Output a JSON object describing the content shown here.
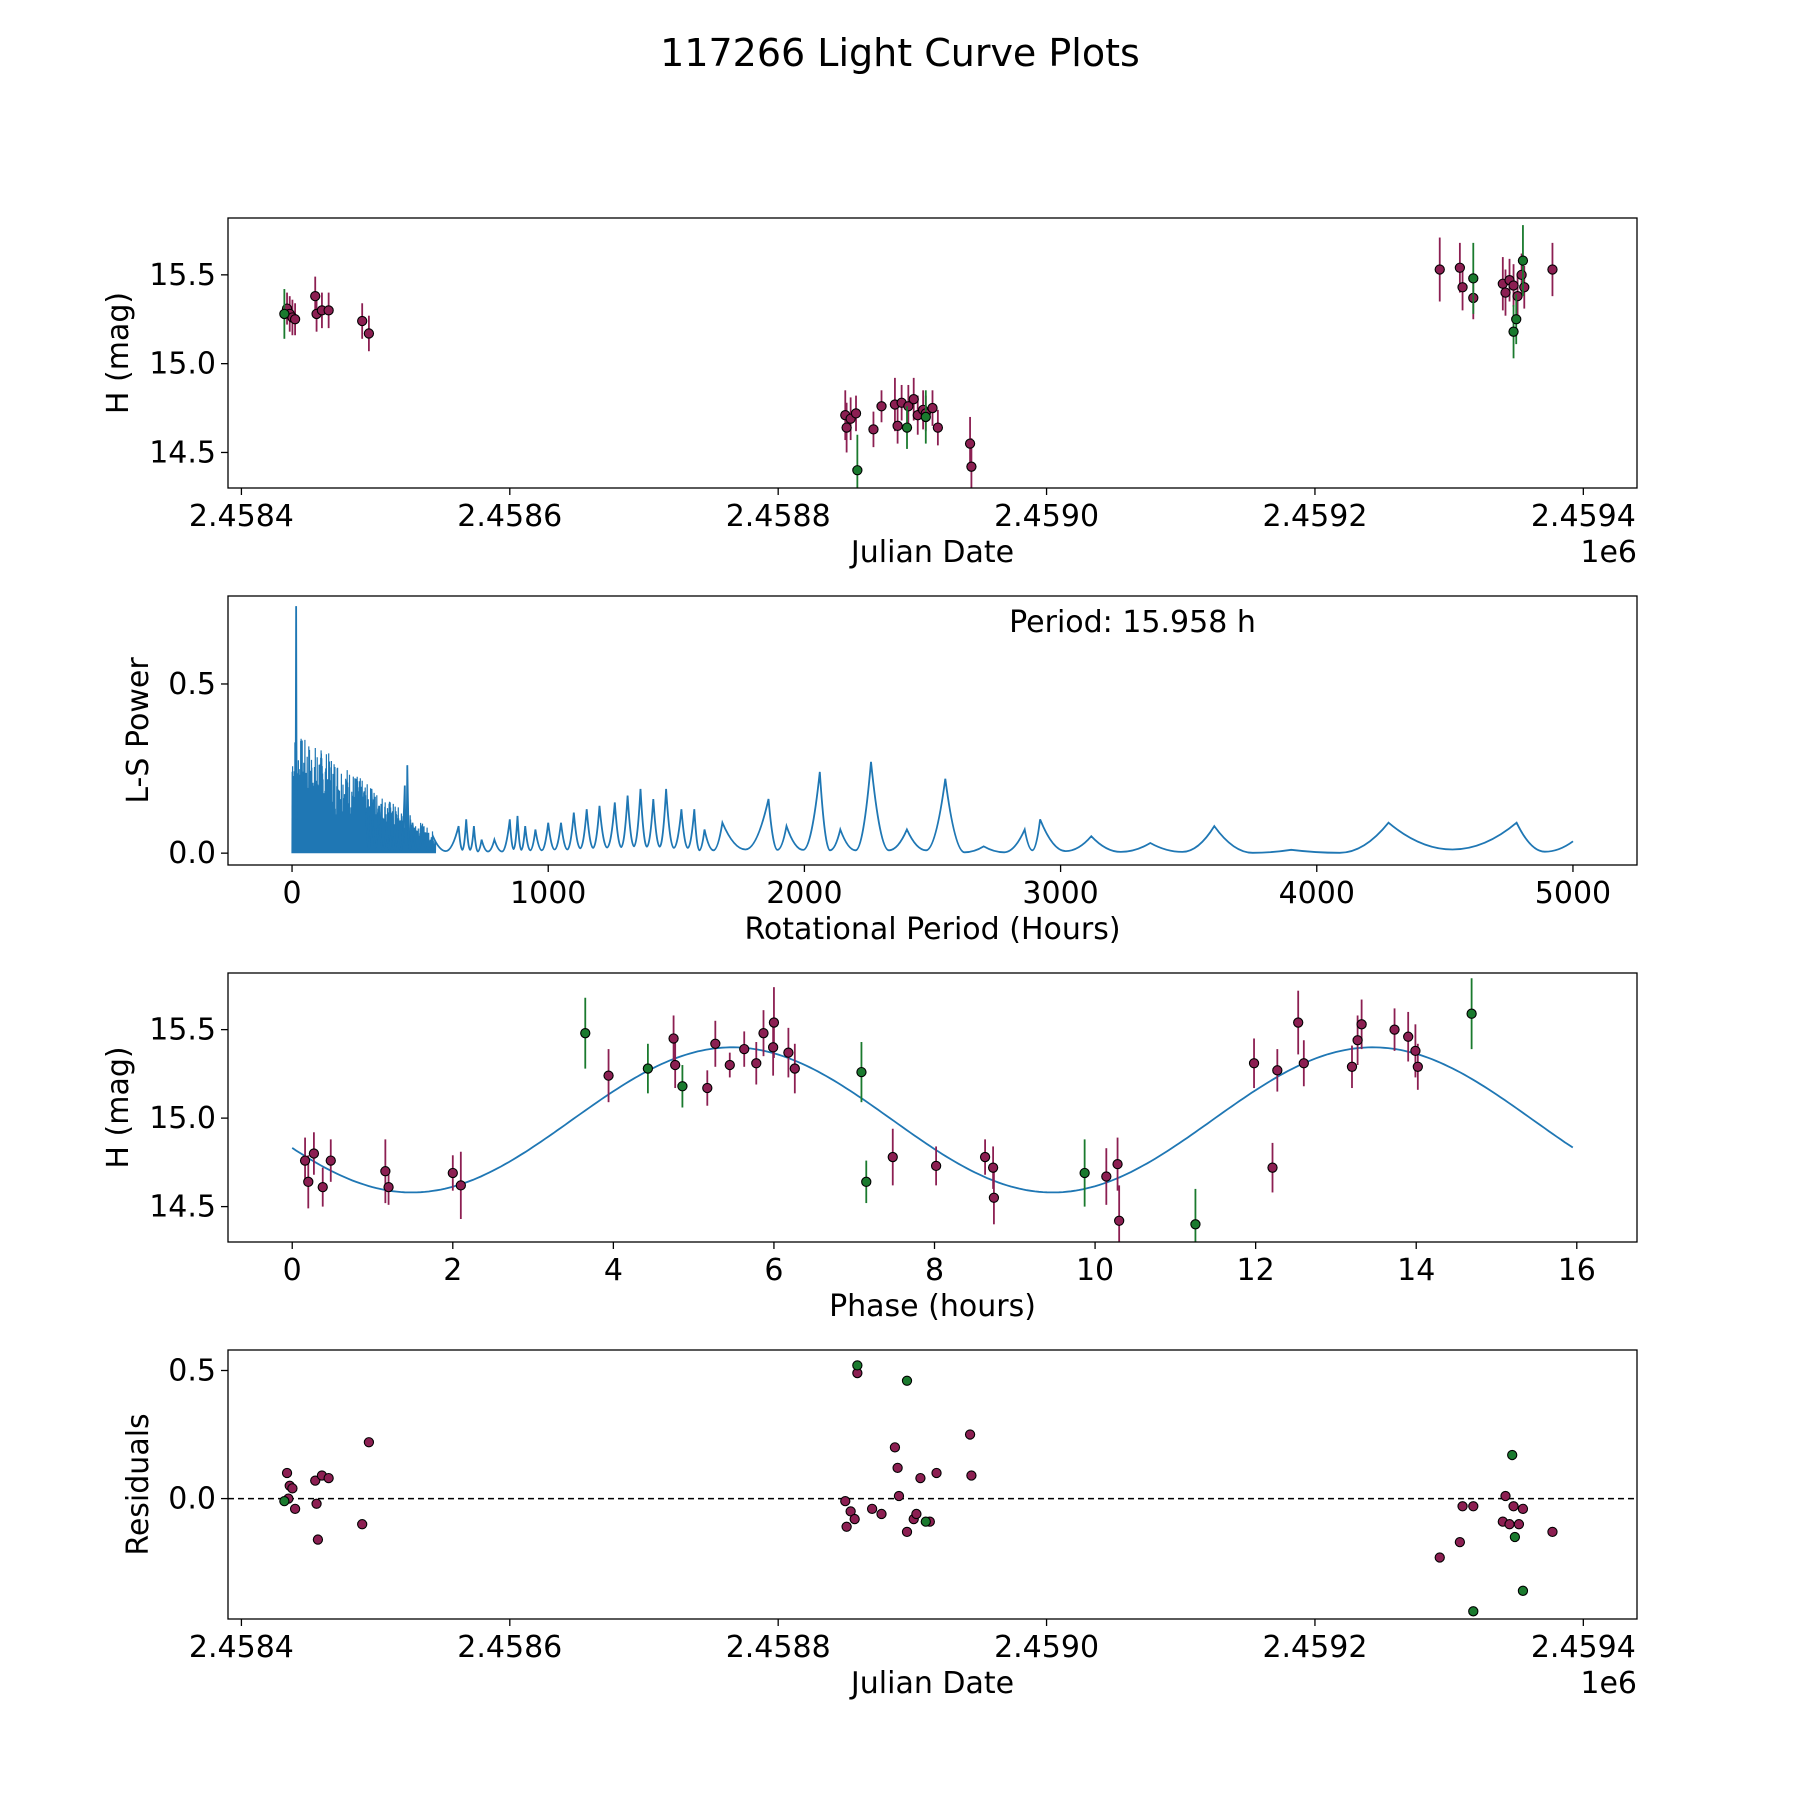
{
  "title": "117266 Light Curve Plots",
  "colors": {
    "filter_a": "#8c1f52",
    "filter_b": "#1a7a2e",
    "curve": "#1f77b4",
    "marker_edge": "#000000",
    "zero_line": "#000000"
  },
  "legend": "none",
  "chart_data": [
    {
      "type": "scatter",
      "ylabel": "H (mag)",
      "xlabel": "Julian Date",
      "x_offset_label": "1e6",
      "xlim": [
        2.45839,
        2.45944
      ],
      "ylim": [
        14.3,
        15.82
      ],
      "xticks": [
        2.4584,
        2.4586,
        2.4588,
        2.459,
        2.4592,
        2.4594
      ],
      "xtick_labels": [
        "2.4584",
        "2.4586",
        "2.4588",
        "2.4590",
        "2.4592",
        "2.4594"
      ],
      "yticks": [
        14.5,
        15.0,
        15.5
      ],
      "ytick_labels": [
        "14.5",
        "15.0",
        "15.5"
      ],
      "series": [
        {
          "marker_color": "#8c1f52",
          "points": [
            [
              2.458434,
              15.31,
              0.09
            ],
            [
              2.458436,
              15.28,
              0.1
            ],
            [
              2.458438,
              15.26,
              0.1
            ],
            [
              2.45844,
              15.25,
              0.09
            ],
            [
              2.458455,
              15.38,
              0.11
            ],
            [
              2.458456,
              15.28,
              0.1
            ],
            [
              2.45846,
              15.3,
              0.1
            ],
            [
              2.458465,
              15.3,
              0.1
            ],
            [
              2.45849,
              15.24,
              0.1
            ],
            [
              2.458495,
              15.17,
              0.1
            ],
            [
              2.45885,
              14.71,
              0.14
            ],
            [
              2.458851,
              14.64,
              0.14
            ],
            [
              2.458854,
              14.69,
              0.12
            ],
            [
              2.458858,
              14.72,
              0.1
            ],
            [
              2.458871,
              14.63,
              0.1
            ],
            [
              2.458877,
              14.76,
              0.09
            ],
            [
              2.458887,
              14.77,
              0.15
            ],
            [
              2.458889,
              14.65,
              0.1
            ],
            [
              2.458892,
              14.78,
              0.1
            ],
            [
              2.458897,
              14.76,
              0.12
            ],
            [
              2.458901,
              14.8,
              0.12
            ],
            [
              2.458904,
              14.71,
              0.11
            ],
            [
              2.458908,
              14.74,
              0.11
            ],
            [
              2.45891,
              14.72,
              0.1
            ],
            [
              2.458915,
              14.75,
              0.1
            ],
            [
              2.458919,
              14.64,
              0.1
            ],
            [
              2.458943,
              14.55,
              0.15
            ],
            [
              2.458944,
              14.42,
              0.16
            ],
            [
              2.459293,
              15.53,
              0.18
            ],
            [
              2.459308,
              15.54,
              0.14
            ],
            [
              2.45931,
              15.43,
              0.13
            ],
            [
              2.459318,
              15.37,
              0.12
            ],
            [
              2.45934,
              15.45,
              0.15
            ],
            [
              2.459342,
              15.4,
              0.13
            ],
            [
              2.459345,
              15.47,
              0.12
            ],
            [
              2.459348,
              15.44,
              0.12
            ],
            [
              2.459351,
              15.38,
              0.12
            ],
            [
              2.459354,
              15.5,
              0.12
            ],
            [
              2.459356,
              15.43,
              0.12
            ],
            [
              2.459377,
              15.53,
              0.15
            ]
          ]
        },
        {
          "marker_color": "#1a7a2e",
          "points": [
            [
              2.458432,
              15.28,
              0.14
            ],
            [
              2.458859,
              14.4,
              0.2
            ],
            [
              2.458896,
              14.64,
              0.12
            ],
            [
              2.45891,
              14.7,
              0.15
            ],
            [
              2.459318,
              15.48,
              0.2
            ],
            [
              2.459348,
              15.18,
              0.15
            ],
            [
              2.45935,
              15.25,
              0.14
            ],
            [
              2.459355,
              15.58,
              0.2
            ]
          ]
        }
      ]
    },
    {
      "type": "line",
      "ylabel": "L-S Power",
      "xlabel": "Rotational Period (Hours)",
      "annotation": "Period: 15.958 h",
      "xlim": [
        -250,
        5250
      ],
      "ylim": [
        -0.035,
        0.76
      ],
      "xticks": [
        0,
        1000,
        2000,
        3000,
        4000,
        5000
      ],
      "xtick_labels": [
        "0",
        "1000",
        "2000",
        "3000",
        "4000",
        "5000"
      ],
      "yticks": [
        0.0,
        0.5
      ],
      "ytick_labels": [
        "0.0",
        "0.5"
      ],
      "dense_region": {
        "x_range": [
          0,
          560
        ],
        "max_power": [
          [
            0,
            0.36
          ],
          [
            180,
            0.28
          ],
          [
            300,
            0.2
          ],
          [
            560,
            0.06
          ]
        ]
      },
      "peak": {
        "x": 15.958,
        "y": 0.73
      },
      "peaks": [
        [
          10,
          0.73
        ],
        [
          18,
          0.52
        ],
        [
          60,
          0.39
        ],
        [
          110,
          0.3
        ],
        [
          130,
          0.25
        ],
        [
          150,
          0.29
        ],
        [
          160,
          0.25
        ],
        [
          185,
          0.28
        ],
        [
          245,
          0.3
        ],
        [
          290,
          0.12
        ],
        [
          310,
          0.19
        ],
        [
          340,
          0.14
        ],
        [
          370,
          0.08
        ],
        [
          390,
          0.12
        ],
        [
          410,
          0.07
        ],
        [
          440,
          0.2
        ],
        [
          450,
          0.26
        ],
        [
          470,
          0.09
        ],
        [
          510,
          0.06
        ],
        [
          550,
          0.05
        ],
        [
          650,
          0.08
        ],
        [
          680,
          0.1
        ],
        [
          710,
          0.08
        ],
        [
          740,
          0.04
        ],
        [
          790,
          0.04
        ],
        [
          850,
          0.1
        ],
        [
          880,
          0.11
        ],
        [
          910,
          0.08
        ],
        [
          950,
          0.07
        ],
        [
          1000,
          0.09
        ],
        [
          1050,
          0.09
        ],
        [
          1100,
          0.12
        ],
        [
          1150,
          0.13
        ],
        [
          1200,
          0.14
        ],
        [
          1260,
          0.15
        ],
        [
          1310,
          0.17
        ],
        [
          1360,
          0.19
        ],
        [
          1410,
          0.16
        ],
        [
          1460,
          0.19
        ],
        [
          1520,
          0.13
        ],
        [
          1570,
          0.13
        ],
        [
          1610,
          0.07
        ],
        [
          1680,
          0.09
        ],
        [
          1860,
          0.16
        ],
        [
          1930,
          0.08
        ],
        [
          2060,
          0.24
        ],
        [
          2140,
          0.07
        ],
        [
          2260,
          0.27
        ],
        [
          2400,
          0.07
        ],
        [
          2550,
          0.22
        ],
        [
          2700,
          0.02
        ],
        [
          2860,
          0.07
        ],
        [
          2920,
          0.1
        ],
        [
          3120,
          0.05
        ],
        [
          3350,
          0.03
        ],
        [
          3600,
          0.08
        ],
        [
          3900,
          0.01
        ],
        [
          4280,
          0.09
        ],
        [
          4780,
          0.09
        ],
        [
          5000,
          0.035
        ]
      ]
    },
    {
      "type": "scatter",
      "ylabel": "H (mag)",
      "xlabel": "Phase (hours)",
      "xlim": [
        -0.8,
        16.75
      ],
      "ylim": [
        14.3,
        15.82
      ],
      "xticks": [
        0,
        2,
        4,
        6,
        8,
        10,
        12,
        14,
        16
      ],
      "xtick_labels": [
        "0",
        "2",
        "4",
        "6",
        "8",
        "10",
        "12",
        "14",
        "16"
      ],
      "yticks": [
        14.5,
        15.0,
        15.5
      ],
      "ytick_labels": [
        "14.5",
        "15.0",
        "15.5"
      ],
      "fit": {
        "mean": 14.99,
        "amplitude": 0.41,
        "period": 7.979,
        "phase_max": 5.48,
        "range": [
          0,
          15.958
        ]
      },
      "series": [
        {
          "marker_color": "#8c1f52",
          "points": [
            [
              0.16,
              14.76,
              0.13
            ],
            [
              0.2,
              14.64,
              0.15
            ],
            [
              0.27,
              14.8,
              0.12
            ],
            [
              0.38,
              14.61,
              0.11
            ],
            [
              0.48,
              14.76,
              0.12
            ],
            [
              1.16,
              14.7,
              0.18
            ],
            [
              1.2,
              14.61,
              0.1
            ],
            [
              2.0,
              14.69,
              0.1
            ],
            [
              2.1,
              14.62,
              0.19
            ],
            [
              3.94,
              15.24,
              0.15
            ],
            [
              4.75,
              15.45,
              0.13
            ],
            [
              4.77,
              15.3,
              0.13
            ],
            [
              5.17,
              15.17,
              0.1
            ],
            [
              5.27,
              15.42,
              0.13
            ],
            [
              5.45,
              15.3,
              0.07
            ],
            [
              5.63,
              15.39,
              0.1
            ],
            [
              5.78,
              15.31,
              0.12
            ],
            [
              5.87,
              15.48,
              0.13
            ],
            [
              5.99,
              15.4,
              0.16
            ],
            [
              6.0,
              15.54,
              0.2
            ],
            [
              6.18,
              15.37,
              0.14
            ],
            [
              6.26,
              15.28,
              0.14
            ],
            [
              7.48,
              14.78,
              0.16
            ],
            [
              8.02,
              14.73,
              0.11
            ],
            [
              8.63,
              14.78,
              0.1
            ],
            [
              8.73,
              14.72,
              0.12
            ],
            [
              8.74,
              14.55,
              0.15
            ],
            [
              10.14,
              14.67,
              0.16
            ],
            [
              10.28,
              14.74,
              0.15
            ],
            [
              10.3,
              14.42,
              0.2
            ],
            [
              11.98,
              15.31,
              0.14
            ],
            [
              12.21,
              14.72,
              0.14
            ],
            [
              12.27,
              15.27,
              0.12
            ],
            [
              12.53,
              15.54,
              0.18
            ],
            [
              12.6,
              15.31,
              0.13
            ],
            [
              13.2,
              15.29,
              0.12
            ],
            [
              13.27,
              15.44,
              0.14
            ],
            [
              13.32,
              15.53,
              0.14
            ],
            [
              13.73,
              15.5,
              0.12
            ],
            [
              13.9,
              15.46,
              0.14
            ],
            [
              13.99,
              15.38,
              0.15
            ],
            [
              14.02,
              15.29,
              0.13
            ]
          ]
        },
        {
          "marker_color": "#1a7a2e",
          "points": [
            [
              3.65,
              15.48,
              0.2
            ],
            [
              4.43,
              15.28,
              0.14
            ],
            [
              4.86,
              15.18,
              0.12
            ],
            [
              7.09,
              15.26,
              0.17
            ],
            [
              7.15,
              14.64,
              0.12
            ],
            [
              9.87,
              14.69,
              0.19
            ],
            [
              11.25,
              14.4,
              0.2
            ],
            [
              14.69,
              15.59,
              0.2
            ]
          ]
        }
      ]
    },
    {
      "type": "scatter",
      "ylabel": "Residuals",
      "xlabel": "Julian Date",
      "x_offset_label": "1e6",
      "xlim": [
        2.45839,
        2.45944
      ],
      "ylim": [
        -0.47,
        0.58
      ],
      "xticks": [
        2.4584,
        2.4586,
        2.4588,
        2.459,
        2.4592,
        2.4594
      ],
      "xtick_labels": [
        "2.4584",
        "2.4586",
        "2.4588",
        "2.4590",
        "2.4592",
        "2.4594"
      ],
      "yticks": [
        0.0,
        0.5
      ],
      "ytick_labels": [
        "0.0",
        "0.5"
      ],
      "zero_line": 0,
      "series": [
        {
          "marker_color": "#8c1f52",
          "points": [
            [
              2.458434,
              0.1
            ],
            [
              2.458435,
              0.0
            ],
            [
              2.458436,
              0.05
            ],
            [
              2.458438,
              0.04
            ],
            [
              2.45844,
              -0.04
            ],
            [
              2.458455,
              0.07
            ],
            [
              2.458456,
              -0.02
            ],
            [
              2.458457,
              -0.16
            ],
            [
              2.45846,
              0.09
            ],
            [
              2.458465,
              0.08
            ],
            [
              2.45849,
              -0.1
            ],
            [
              2.458495,
              0.22
            ],
            [
              2.45885,
              -0.01
            ],
            [
              2.458851,
              -0.11
            ],
            [
              2.458854,
              -0.05
            ],
            [
              2.458857,
              -0.08
            ],
            [
              2.458859,
              0.49
            ],
            [
              2.45887,
              -0.04
            ],
            [
              2.458877,
              -0.06
            ],
            [
              2.458887,
              0.2
            ],
            [
              2.458889,
              0.12
            ],
            [
              2.45889,
              0.01
            ],
            [
              2.458896,
              -0.13
            ],
            [
              2.458901,
              -0.08
            ],
            [
              2.458903,
              -0.06
            ],
            [
              2.458906,
              0.08
            ],
            [
              2.458913,
              -0.09
            ],
            [
              2.458918,
              0.1
            ],
            [
              2.458943,
              0.25
            ],
            [
              2.458944,
              0.09
            ],
            [
              2.459293,
              -0.23
            ],
            [
              2.459308,
              -0.17
            ],
            [
              2.45931,
              -0.03
            ],
            [
              2.459318,
              -0.03
            ],
            [
              2.45934,
              -0.09
            ],
            [
              2.459342,
              0.01
            ],
            [
              2.459345,
              -0.1
            ],
            [
              2.459348,
              -0.03
            ],
            [
              2.459352,
              -0.1
            ],
            [
              2.459355,
              -0.04
            ],
            [
              2.459377,
              -0.13
            ]
          ]
        },
        {
          "marker_color": "#1a7a2e",
          "points": [
            [
              2.458432,
              -0.01
            ],
            [
              2.458859,
              0.52
            ],
            [
              2.458896,
              0.46
            ],
            [
              2.45891,
              -0.09
            ],
            [
              2.459318,
              -0.44
            ],
            [
              2.459347,
              0.17
            ],
            [
              2.459349,
              -0.15
            ],
            [
              2.459355,
              -0.36
            ]
          ]
        }
      ]
    }
  ]
}
